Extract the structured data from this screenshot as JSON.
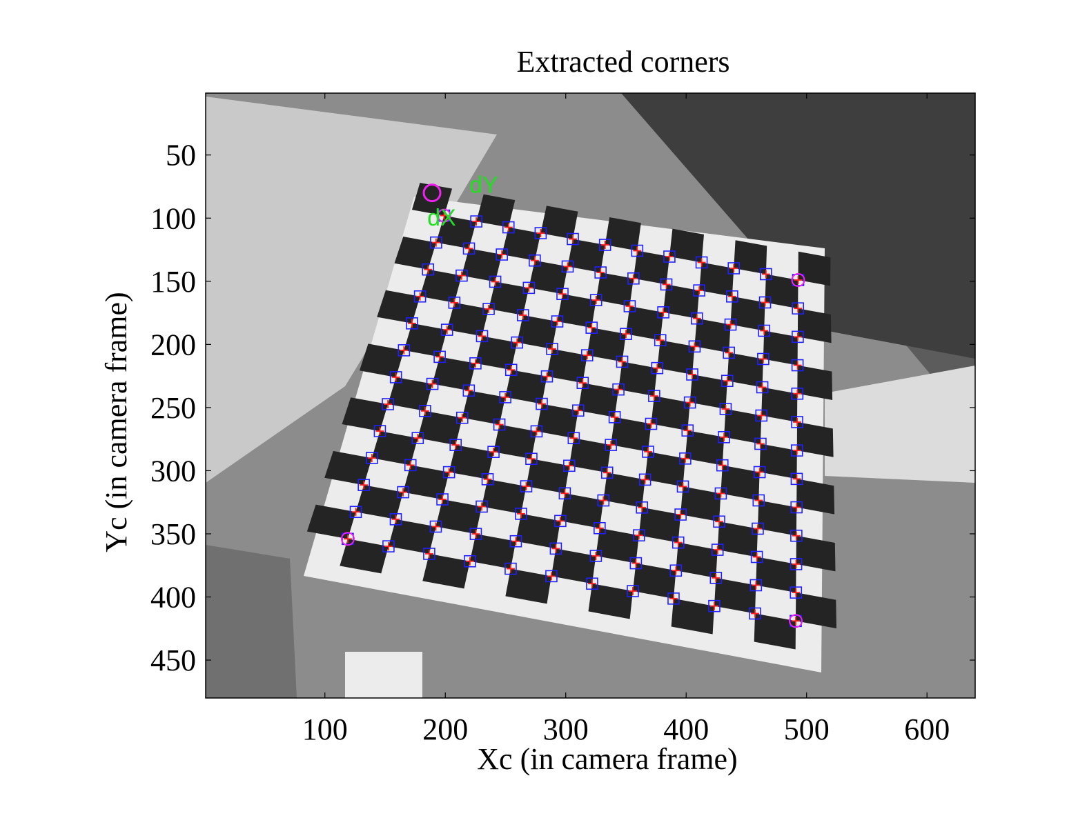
{
  "chart_data": {
    "type": "scatter",
    "title": "Extracted corners",
    "xlabel": "Xc (in camera frame)",
    "ylabel": "Yc (in camera frame)",
    "xlim": [
      1,
      640
    ],
    "ylim": [
      1,
      480
    ],
    "y_reversed": true,
    "xticks": [
      100,
      200,
      300,
      400,
      500,
      600
    ],
    "yticks": [
      50,
      100,
      150,
      200,
      250,
      300,
      350,
      400,
      450
    ],
    "grid": false,
    "background": "grayscale photo of a checkerboard calibration target",
    "grid_shape": {
      "rows": 13,
      "cols": 12
    },
    "grid_corners": {
      "top_left": [
        199,
        98
      ],
      "top_right": [
        493,
        149
      ],
      "bottom_left": [
        119,
        354
      ],
      "bottom_right": [
        491,
        419
      ]
    },
    "series": [
      {
        "marker": "square",
        "color": "#2020ff"
      },
      {
        "marker": "plus",
        "color": "#ff2020"
      }
    ],
    "origin_marker": {
      "x": 189,
      "y": 80,
      "color": "#ee22ee"
    },
    "annotations": [
      {
        "text": "dY",
        "x": 220,
        "y": 80
      },
      {
        "text": "dX",
        "x": 185,
        "y": 106
      }
    ],
    "colors": {
      "corner_box": "#2020ff",
      "corner_cross": "#ff2020",
      "end_corner": "#ee22ee",
      "label": "#22dd22"
    }
  }
}
